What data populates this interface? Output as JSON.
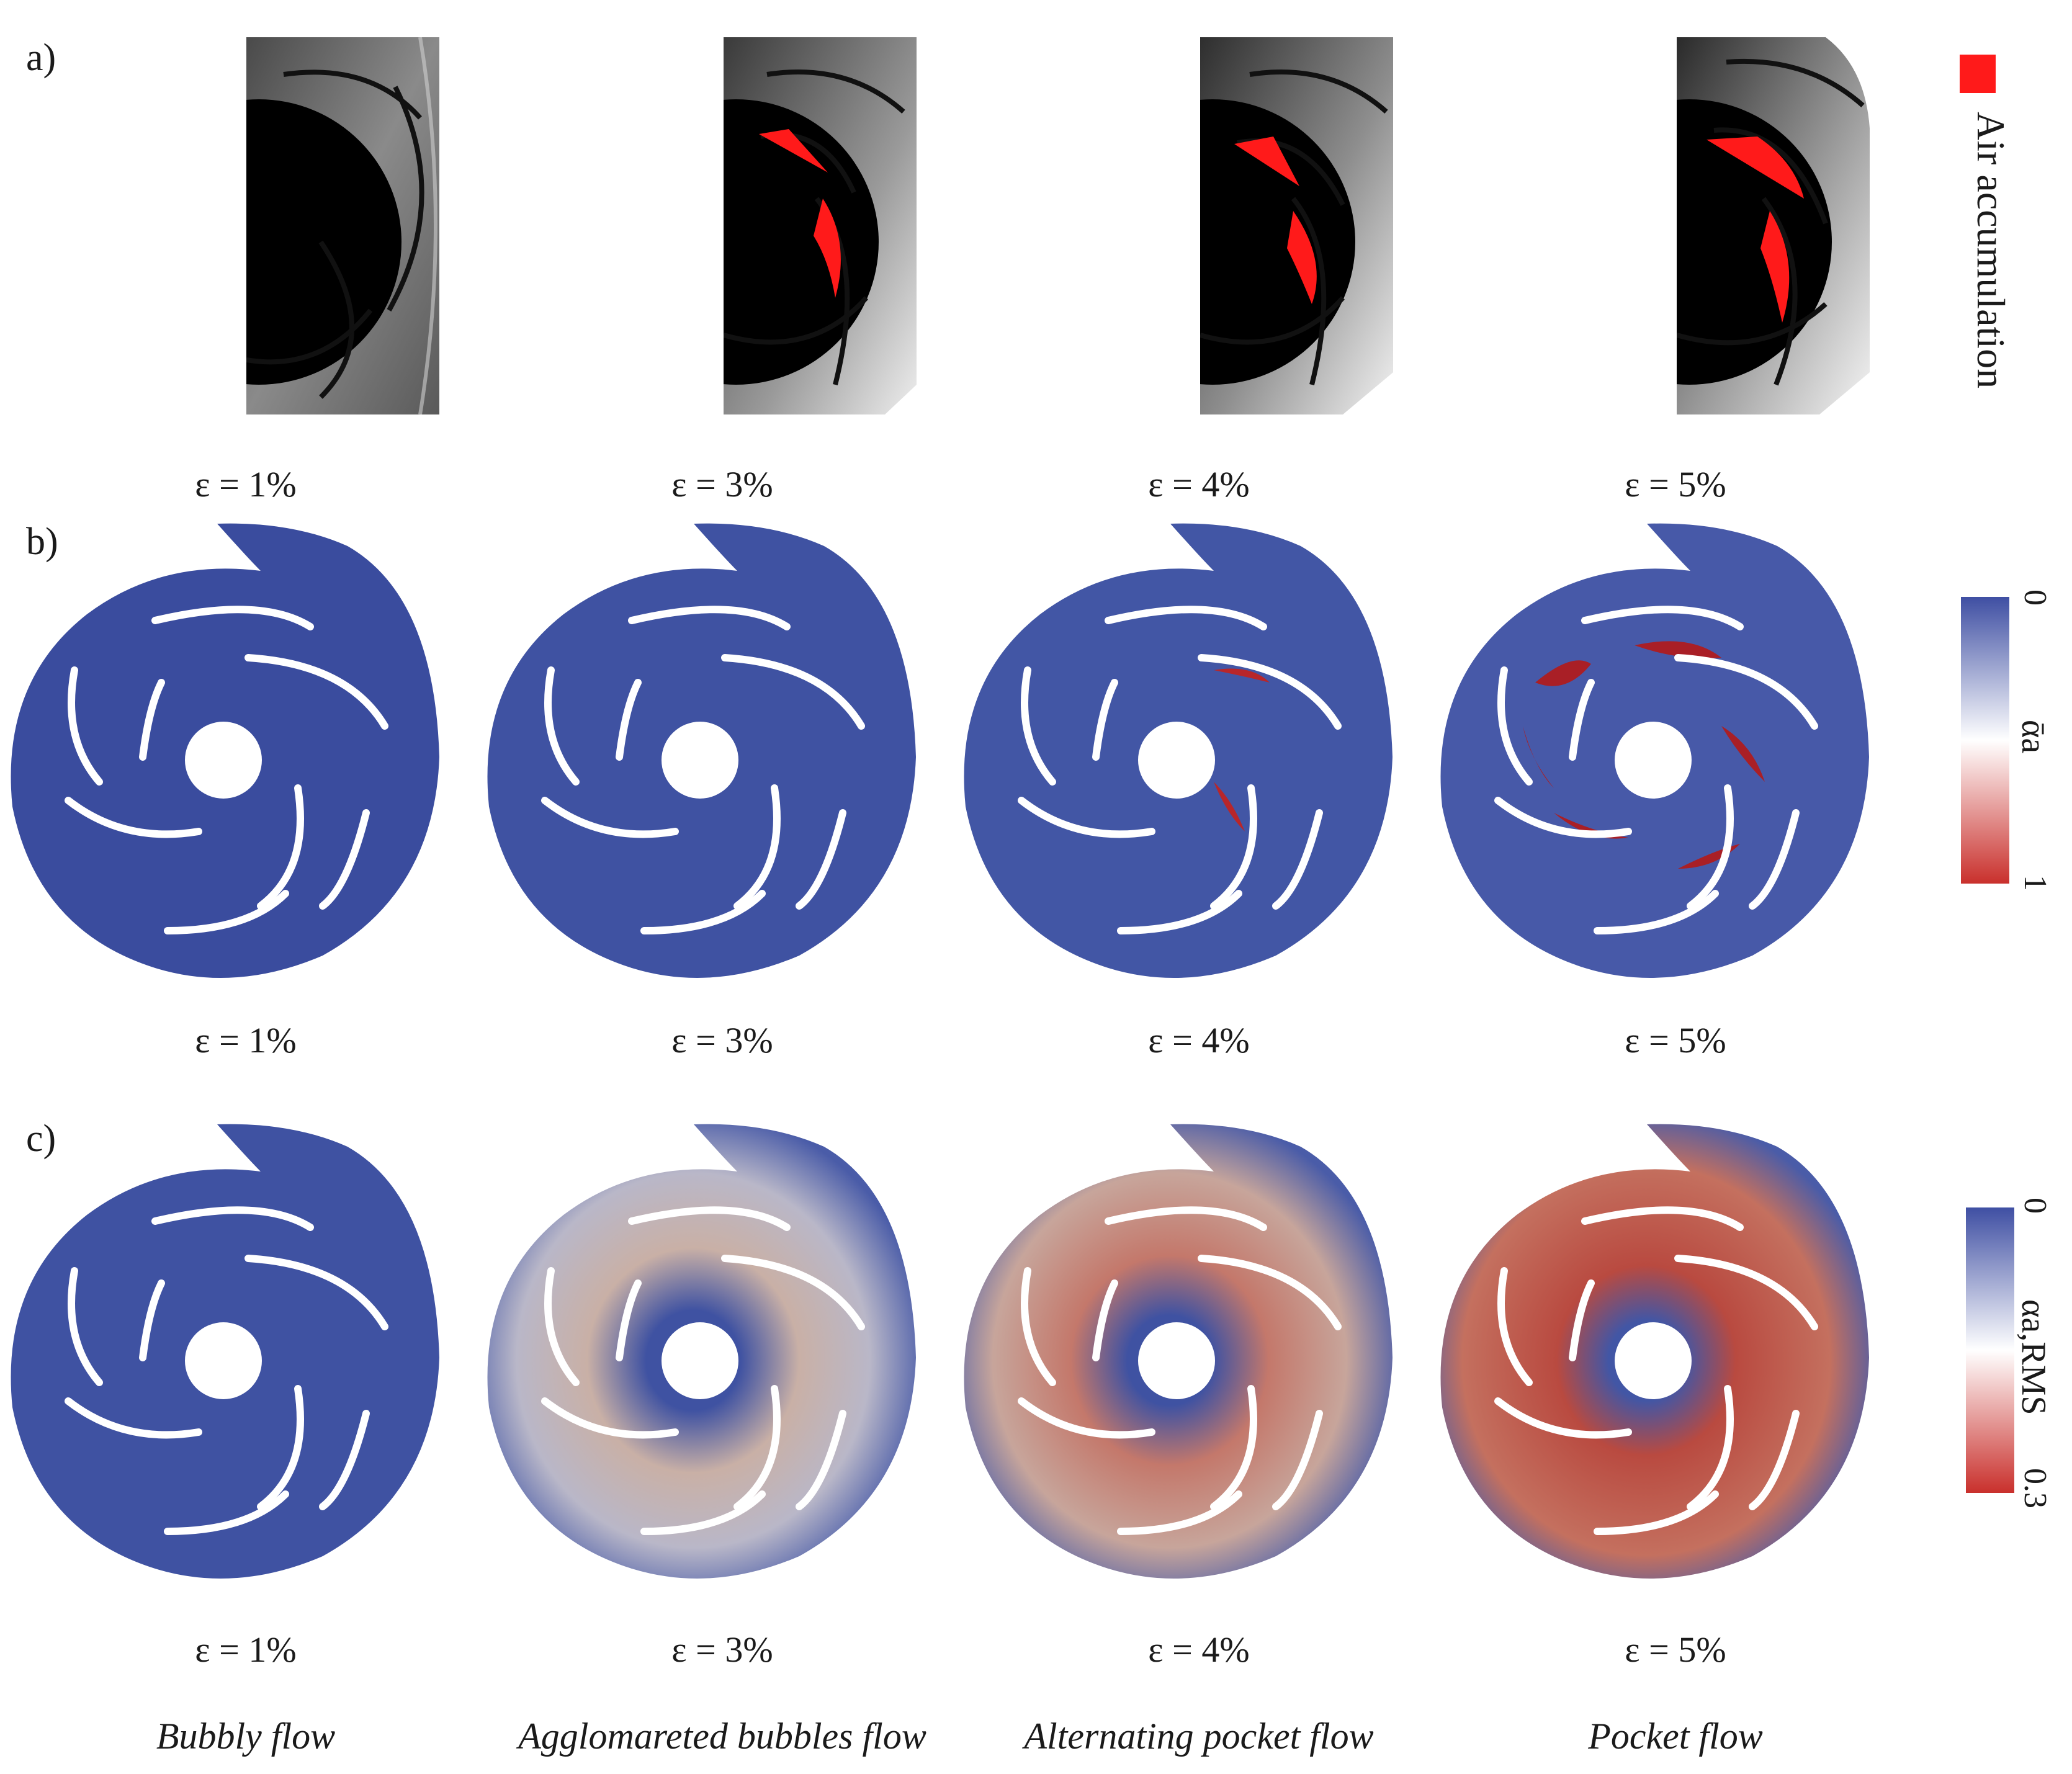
{
  "panels": {
    "a": "a)",
    "b": "b)",
    "c": "c)"
  },
  "epsilon_labels": [
    "ε = 1%",
    "ε = 3%",
    "ε = 4%",
    "ε = 5%"
  ],
  "regimes": [
    "Bubbly flow",
    "Agglomareted bubbles flow",
    "Alternating pocket flow",
    "Pocket flow"
  ],
  "legend_a": {
    "text": "Air accumulation",
    "color": "#ff1a1a"
  },
  "colorbar_b": {
    "min": "0",
    "max": "1",
    "symbol": "ᾱa",
    "colors": [
      "#3f4fa3",
      "#ffffff",
      "#c9302c"
    ]
  },
  "colorbar_c": {
    "min": "0",
    "max": "0.3",
    "symbol": "αa,RMS",
    "colors": [
      "#3f4fa3",
      "#ffffff",
      "#c9302c"
    ]
  }
}
